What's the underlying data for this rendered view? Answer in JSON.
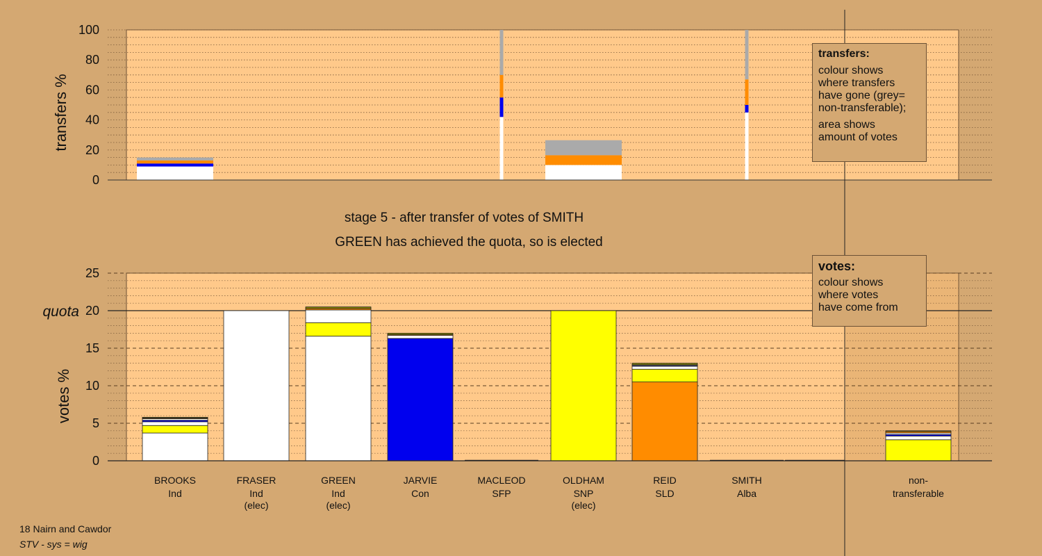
{
  "chart_data": [
    {
      "type": "bar",
      "name": "transfers",
      "ylabel": "transfers %",
      "ylim": [
        0,
        100
      ],
      "yticks": [
        0,
        20,
        40,
        60,
        80,
        100
      ],
      "grid": "dotted",
      "bars": [
        {
          "candidate": "BROOKS",
          "segments": [
            {
              "color": "#ffffff",
              "value": 9
            },
            {
              "color": "#0000ee",
              "value": 2
            },
            {
              "color": "#ff8c00",
              "value": 2
            },
            {
              "color": "#aaaaaa",
              "value": 2
            }
          ]
        },
        {
          "candidate": "MACLEOD",
          "thin": true,
          "segments": [
            {
              "color": "#ffffff",
              "value": 42
            },
            {
              "color": "#0000ee",
              "value": 13
            },
            {
              "color": "#ff8c00",
              "value": 15
            },
            {
              "color": "#aaaaaa",
              "value": 30
            }
          ]
        },
        {
          "candidate": "OLDHAM",
          "segments": [
            {
              "color": "#ffffff",
              "value": 10
            },
            {
              "color": "#ff8c00",
              "value": 6.5
            },
            {
              "color": "#aaaaaa",
              "value": 10
            }
          ]
        },
        {
          "candidate": "SMITH",
          "thin": true,
          "segments": [
            {
              "color": "#ffffff",
              "value": 45
            },
            {
              "color": "#0000ee",
              "value": 5
            },
            {
              "color": "#ff8c00",
              "value": 17
            },
            {
              "color": "#aaaaaa",
              "value": 33
            }
          ]
        }
      ]
    },
    {
      "type": "bar",
      "name": "votes",
      "ylabel": "votes %",
      "ylim": [
        0,
        25
      ],
      "yticks": [
        0,
        5,
        10,
        15,
        20,
        25
      ],
      "quota": 20,
      "quota_label": "quota",
      "grid": "dashed",
      "candidates": [
        {
          "name": "BROOKS",
          "party": "Ind",
          "status": "",
          "segments": [
            {
              "color": "#ffffff",
              "value": 3.7
            },
            {
              "color": "#ffff00",
              "value": 1.0
            },
            {
              "color": "#ffffff",
              "value": 0.5
            },
            {
              "color": "#0000ee",
              "value": 0.2
            },
            {
              "color": "#ffffff",
              "value": 0.2
            },
            {
              "color": "#ff8c00",
              "value": 0.1
            },
            {
              "color": "#8b8b00",
              "value": 0.1
            }
          ]
        },
        {
          "name": "FRASER",
          "party": "Ind",
          "status": "(elec)",
          "segments": [
            {
              "color": "#ffffff",
              "value": 20
            }
          ]
        },
        {
          "name": "GREEN",
          "party": "Ind",
          "status": "(elec)",
          "segments": [
            {
              "color": "#ffffff",
              "value": 16.6
            },
            {
              "color": "#ffff00",
              "value": 1.8
            },
            {
              "color": "#ffffff",
              "value": 1.7
            },
            {
              "color": "#ff8c00",
              "value": 0.2
            },
            {
              "color": "#8b8b00",
              "value": 0.2
            }
          ]
        },
        {
          "name": "JARVIE",
          "party": "Con",
          "status": "",
          "segments": [
            {
              "color": "#0000ee",
              "value": 16.3
            },
            {
              "color": "#ffffff",
              "value": 0.4
            },
            {
              "color": "#ff8c00",
              "value": 0.1
            },
            {
              "color": "#8b8b00",
              "value": 0.2
            }
          ]
        },
        {
          "name": "MACLEOD",
          "party": "SFP",
          "status": "",
          "segments": []
        },
        {
          "name": "OLDHAM",
          "party": "SNP",
          "status": "(elec)",
          "segments": [
            {
              "color": "#ffff00",
              "value": 20
            }
          ]
        },
        {
          "name": "REID",
          "party": "SLD",
          "status": "",
          "segments": [
            {
              "color": "#ff8c00",
              "value": 10.5
            },
            {
              "color": "#ffff00",
              "value": 1.7
            },
            {
              "color": "#ffffff",
              "value": 0.4
            },
            {
              "color": "#0000ee",
              "value": 0.1
            },
            {
              "color": "#ffffff",
              "value": 0.1
            },
            {
              "color": "#8b8b00",
              "value": 0.2
            }
          ]
        },
        {
          "name": "SMITH",
          "party": "Alba",
          "status": "",
          "segments": []
        }
      ],
      "nontransferable": {
        "label1": "non-",
        "label2": "transferable",
        "segments": [
          {
            "color": "#ffff00",
            "value": 2.8
          },
          {
            "color": "#ffffff",
            "value": 0.5
          },
          {
            "color": "#0000ee",
            "value": 0.2
          },
          {
            "color": "#ffffff",
            "value": 0.2
          },
          {
            "color": "#ff8c00",
            "value": 0.2
          },
          {
            "color": "#8b8b00",
            "value": 0.1
          }
        ]
      }
    }
  ],
  "stage": {
    "line1": "stage 5 - after transfer of votes of SMITH",
    "line2": "GREEN has achieved the quota, so is elected"
  },
  "legend_transfers": {
    "heading": "transfers:",
    "para1": [
      "colour shows",
      "where transfers",
      "have gone (grey=",
      "non-transferable);"
    ],
    "para2": [
      "area shows",
      "amount of votes"
    ]
  },
  "legend_votes": {
    "heading": "votes:",
    "para1": [
      "colour shows",
      "where votes",
      "have come from"
    ]
  },
  "footer": {
    "line1": "18 Nairn and Cawdor",
    "line2": "STV - sys = wig"
  },
  "colors": {
    "background": "#d4a872",
    "plot_bg": "#ffc98a",
    "white": "#ffffff",
    "yellow": "#ffff00",
    "blue": "#0000ee",
    "orange": "#ff8c00",
    "grey": "#aaaaaa",
    "olive": "#8b8b00"
  }
}
